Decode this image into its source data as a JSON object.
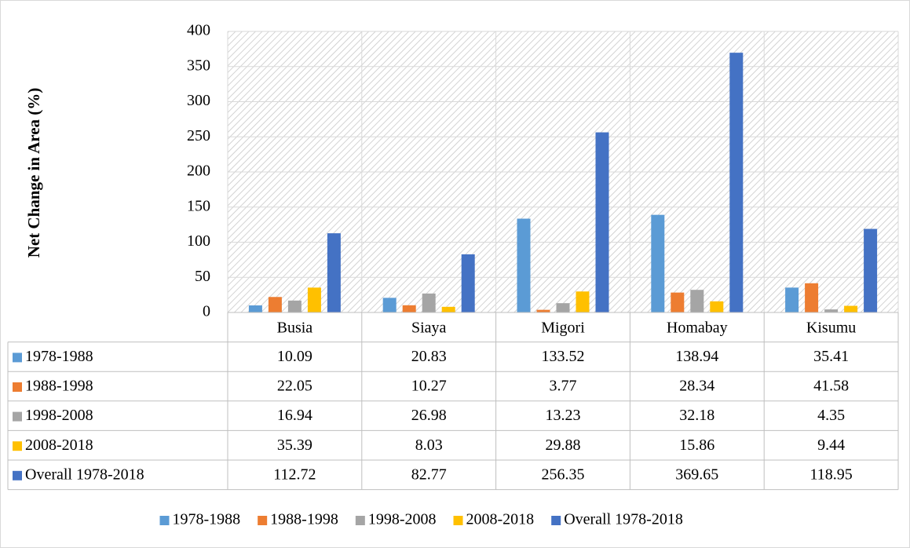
{
  "chart_data": {
    "type": "bar",
    "y_axis_label": "Net Change in Area (%)",
    "categories": [
      "Busia",
      "Siaya",
      "Migori",
      "Homabay",
      "Kisumu"
    ],
    "series": [
      {
        "name": "1978-1988",
        "color": "#5b9bd5",
        "values": [
          10.09,
          20.83,
          133.52,
          138.94,
          35.41
        ]
      },
      {
        "name": "1988-1998",
        "color": "#ed7d31",
        "values": [
          22.05,
          10.27,
          3.77,
          28.34,
          41.58
        ]
      },
      {
        "name": "1998-2008",
        "color": "#a5a5a5",
        "values": [
          16.94,
          26.98,
          13.23,
          32.18,
          4.35
        ]
      },
      {
        "name": "2008-2018",
        "color": "#ffc000",
        "values": [
          35.39,
          8.03,
          29.88,
          15.86,
          9.44
        ]
      },
      {
        "name": "Overall 1978-2018",
        "color": "#4472c4",
        "values": [
          112.72,
          82.77,
          256.35,
          369.65,
          118.95
        ]
      }
    ],
    "ylim": [
      0,
      400
    ],
    "yticks": [
      0,
      50,
      100,
      150,
      200,
      250,
      300,
      350,
      400
    ],
    "grid": true,
    "legend": "bottom",
    "data_table": true
  }
}
